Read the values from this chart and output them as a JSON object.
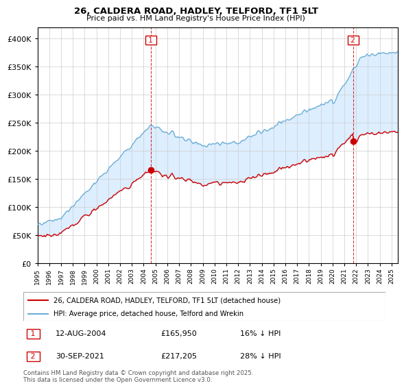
{
  "title": "26, CALDERA ROAD, HADLEY, TELFORD, TF1 5LT",
  "subtitle": "Price paid vs. HM Land Registry's House Price Index (HPI)",
  "legend_line1": "26, CALDERA ROAD, HADLEY, TELFORD, TF1 5LT (detached house)",
  "legend_line2": "HPI: Average price, detached house, Telford and Wrekin",
  "marker1_date": "12-AUG-2004",
  "marker1_price": 165950,
  "marker1_year": 2004.6,
  "marker1_pct": "16% ↓ HPI",
  "marker2_date": "30-SEP-2021",
  "marker2_price": 217205,
  "marker2_year": 2021.75,
  "marker2_pct": "28% ↓ HPI",
  "footnote": "Contains HM Land Registry data © Crown copyright and database right 2025.\nThis data is licensed under the Open Government Licence v3.0.",
  "hpi_color": "#6baed6",
  "price_color": "#cc0000",
  "fill_color": "#ddeeff",
  "marker_color": "#cc0000",
  "ylim": [
    0,
    420000
  ],
  "yticks": [
    0,
    50000,
    100000,
    150000,
    200000,
    250000,
    300000,
    350000,
    400000
  ],
  "xstart": 1995,
  "xend": 2025.5,
  "background_color": "#ffffff",
  "grid_color": "#cccccc"
}
